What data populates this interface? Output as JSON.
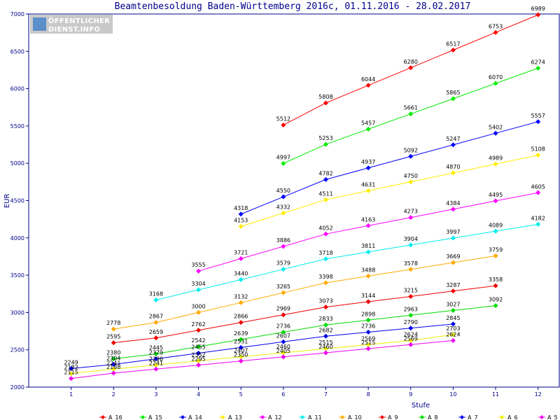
{
  "chart_data": {
    "type": "line",
    "title": "Beamtenbesoldung Baden-Württemberg 2016c, 01.11.2016 - 28.02.2017",
    "xlabel": "Stufe",
    "ylabel": "EUR",
    "xlim": [
      0,
      12.5
    ],
    "ylim": [
      2000,
      7000
    ],
    "x_ticks": [
      1,
      2,
      3,
      4,
      5,
      6,
      7,
      8,
      9,
      10,
      11,
      12
    ],
    "y_ticks": [
      2000,
      2500,
      3000,
      3500,
      4000,
      4500,
      5000,
      5500,
      6000,
      6500,
      7000
    ],
    "grid": false,
    "legend_position": "bottom",
    "logo": {
      "line1": "ÖFFENTLICHER",
      "line2": "DIENST.INFO"
    },
    "series": [
      {
        "name": "A_16",
        "color": "#ff0000",
        "x": [
          6,
          7,
          8,
          9,
          10,
          11,
          12
        ],
        "values": [
          5512,
          5808,
          6044,
          6280,
          6517,
          6753,
          6989
        ]
      },
      {
        "name": "A_15",
        "color": "#00ee00",
        "x": [
          6,
          7,
          8,
          9,
          10,
          11,
          12
        ],
        "values": [
          4997,
          5253,
          5457,
          5661,
          5865,
          6070,
          6274
        ]
      },
      {
        "name": "A_14",
        "color": "#0000ff",
        "x": [
          5,
          6,
          7,
          8,
          9,
          10,
          11,
          12
        ],
        "values": [
          4318,
          4550,
          4782,
          4937,
          5092,
          5247,
          5402,
          5557
        ]
      },
      {
        "name": "A_13",
        "color": "#ffee00",
        "x": [
          5,
          6,
          7,
          8,
          9,
          10,
          11,
          12
        ],
        "values": [
          4153,
          4332,
          4511,
          4631,
          4750,
          4870,
          4989,
          5108
        ]
      },
      {
        "name": "A_12",
        "color": "#ff00ff",
        "x": [
          4,
          5,
          6,
          7,
          8,
          9,
          10,
          11,
          12
        ],
        "values": [
          3555,
          3721,
          3886,
          4052,
          4163,
          4273,
          4384,
          4495,
          4605
        ]
      },
      {
        "name": "A_11",
        "color": "#00eeee",
        "x": [
          3,
          4,
          5,
          6,
          7,
          8,
          9,
          10,
          11,
          12
        ],
        "values": [
          3168,
          3304,
          3440,
          3579,
          3718,
          3811,
          3904,
          3997,
          4089,
          4182
        ]
      },
      {
        "name": "A_10",
        "color": "#ffaa00",
        "x": [
          2,
          3,
          4,
          5,
          6,
          7,
          8,
          9,
          10,
          11
        ],
        "values": [
          2778,
          2867,
          3000,
          3132,
          3265,
          3398,
          3488,
          3578,
          3669,
          3759
        ]
      },
      {
        "name": "A_9",
        "color": "#ee0000",
        "x": [
          2,
          3,
          4,
          5,
          6,
          7,
          8,
          9,
          10,
          11
        ],
        "values": [
          2595,
          2659,
          2762,
          2866,
          2969,
          3073,
          3144,
          3215,
          3287,
          3358
        ]
      },
      {
        "name": "A_8",
        "color": "#00dd00",
        "x": [
          2,
          3,
          4,
          5,
          6,
          7,
          8,
          9,
          10,
          11
        ],
        "values": [
          2380,
          2445,
          2542,
          2639,
          2736,
          2833,
          2898,
          2963,
          3027,
          3092
        ]
      },
      {
        "name": "A_7",
        "color": "#0000ee",
        "x": [
          1,
          2,
          3,
          4,
          5,
          6,
          7,
          8,
          9,
          10
        ],
        "values": [
          2249,
          2304,
          2379,
          2455,
          2531,
          2607,
          2682,
          2736,
          2790,
          2845
        ]
      },
      {
        "name": "A_6",
        "color": "#eeee00",
        "x": [
          1,
          2,
          3,
          4,
          5,
          6,
          7,
          8,
          9,
          10
        ],
        "values": [
          2182,
          2241,
          2296,
          2352,
          2407,
          2460,
          2515,
          2569,
          2624,
          2703
        ]
      },
      {
        "name": "A_5",
        "color": "#ee00ee",
        "x": [
          1,
          2,
          3,
          4,
          5,
          6,
          7,
          8,
          9,
          10
        ],
        "values": [
          2115,
          2188,
          2241,
          2295,
          2350,
          2405,
          2460,
          2515,
          2569,
          2624
        ]
      }
    ]
  }
}
